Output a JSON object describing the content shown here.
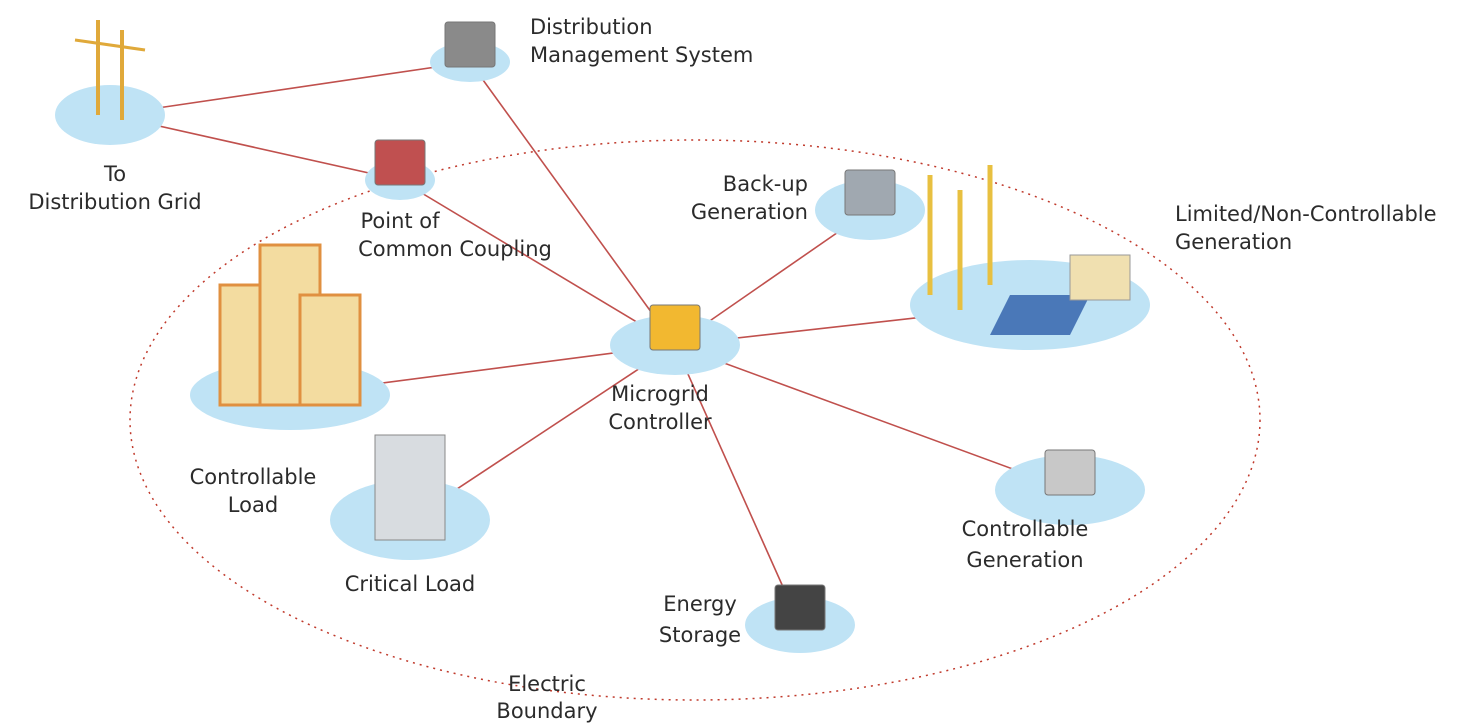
{
  "title_area": null,
  "nodes": [
    {
      "label": [
        "To",
        "Distribution Grid"
      ]
    },
    {
      "label": [
        "Distribution",
        "Management System"
      ]
    },
    {
      "label": [
        "Point of",
        "Common Coupling"
      ]
    },
    {
      "label": [
        "Microgrid",
        "Controller"
      ]
    },
    {
      "label": [
        "Back-up",
        "Generation"
      ]
    },
    {
      "label": [
        "Limited/Non-Controllable",
        "Generation"
      ]
    },
    {
      "label": [
        "Controllable",
        "Load"
      ]
    },
    {
      "label": [
        "Critical Load"
      ]
    },
    {
      "label": [
        "Energy",
        "Storage"
      ]
    },
    {
      "label": [
        "Controllable",
        "Generation"
      ]
    }
  ],
  "boundary": {
    "label": [
      "Electric",
      "Boundary"
    ]
  }
}
